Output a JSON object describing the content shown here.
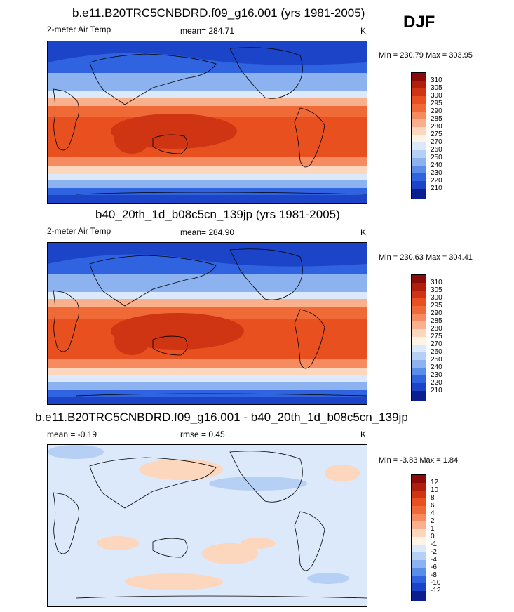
{
  "season": "DJF",
  "panels": [
    {
      "title": "b.e11.B20TRC5CNBDRD.f09_g16.001 (yrs 1981-2005)",
      "left_label": "2-meter Air Temp",
      "center_label": "mean= 284.71",
      "unit": "K",
      "minmax": "Min = 230.79 Max = 303.95"
    },
    {
      "title": "b40_20th_1d_b08c5cn_139jp (yrs 1981-2005)",
      "left_label": "2-meter Air Temp",
      "center_label": "mean= 284.90",
      "unit": "K",
      "minmax": "Min = 230.63 Max = 304.41"
    },
    {
      "title": "b.e11.B20TRC5CNBDRD.f09_g16.001 - b40_20th_1d_b08c5cn_139jp",
      "left_label": "mean =  -0.19",
      "center_label": "rmse =   0.45",
      "unit": "K",
      "minmax": "Min =  -3.83 Max =   1.84"
    }
  ],
  "chart_data": [
    {
      "type": "heatmap",
      "title": "b.e11.B20TRC5CNBDRD.f09_g16.001 (yrs 1981-2005)",
      "variable": "2-meter Air Temp",
      "unit": "K",
      "mean": 284.71,
      "min": 230.79,
      "max": 303.95,
      "colorbar_levels": [
        "310",
        "305",
        "300",
        "295",
        "290",
        "285",
        "280",
        "275",
        "270",
        "260",
        "250",
        "240",
        "230",
        "220",
        "210"
      ],
      "colorbar_colors": [
        "#8c0a0a",
        "#b01e0e",
        "#cf3413",
        "#e8501f",
        "#f06a38",
        "#f58b5e",
        "#f9b08d",
        "#fcd6bd",
        "#fff3e4",
        "#dbe9fb",
        "#b5cff5",
        "#8cb2ef",
        "#5a8de8",
        "#2f63e0",
        "#1b44c8",
        "#0a1e8f"
      ],
      "projection": "global cylindrical equidistant, Pacific-centered"
    },
    {
      "type": "heatmap",
      "title": "b40_20th_1d_b08c5cn_139jp (yrs 1981-2005)",
      "variable": "2-meter Air Temp",
      "unit": "K",
      "mean": 284.9,
      "min": 230.63,
      "max": 304.41,
      "colorbar_levels": [
        "310",
        "305",
        "300",
        "295",
        "290",
        "285",
        "280",
        "275",
        "270",
        "260",
        "250",
        "240",
        "230",
        "220",
        "210"
      ],
      "colorbar_colors": [
        "#8c0a0a",
        "#b01e0e",
        "#cf3413",
        "#e8501f",
        "#f06a38",
        "#f58b5e",
        "#f9b08d",
        "#fcd6bd",
        "#fff3e4",
        "#dbe9fb",
        "#b5cff5",
        "#8cb2ef",
        "#5a8de8",
        "#2f63e0",
        "#1b44c8",
        "#0a1e8f"
      ],
      "projection": "global cylindrical equidistant, Pacific-centered"
    },
    {
      "type": "heatmap",
      "title": "b.e11.B20TRC5CNBDRD.f09_g16.001 - b40_20th_1d_b08c5cn_139jp",
      "unit": "K",
      "mean": -0.19,
      "rmse": 0.45,
      "min": -3.83,
      "max": 1.84,
      "colorbar_levels": [
        "12",
        "10",
        "8",
        "6",
        "4",
        "2",
        "1",
        "0",
        "-1",
        "-2",
        "-4",
        "-6",
        "-8",
        "-10",
        "-12"
      ],
      "colorbar_colors": [
        "#8c0a0a",
        "#b01e0e",
        "#cf3413",
        "#e8501f",
        "#f06a38",
        "#f58b5e",
        "#f9b08d",
        "#fcd6bd",
        "#fff3e4",
        "#dbe9fb",
        "#b5cff5",
        "#8cb2ef",
        "#5a8de8",
        "#2f63e0",
        "#1b44c8",
        "#0a1e8f"
      ],
      "projection": "global cylindrical equidistant, Pacific-centered"
    }
  ]
}
